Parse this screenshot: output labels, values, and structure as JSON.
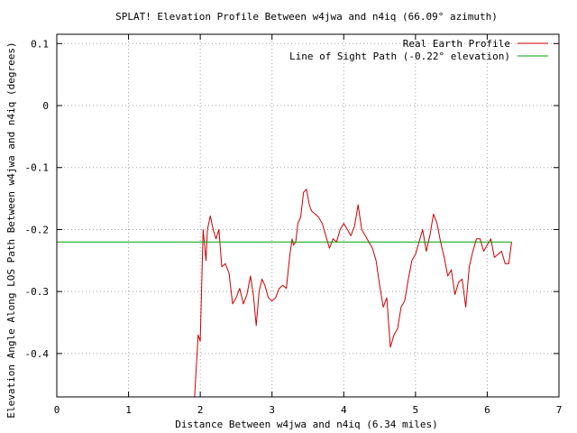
{
  "chart_data": {
    "type": "line",
    "title": "SPLAT! Elevation Profile Between w4jwa and n4iq (66.09° azimuth)",
    "xlabel": "Distance Between w4jwa and n4iq (6.34 miles)",
    "ylabel": "Elevation Angle Along LOS Path Between w4jwa and n4iq (degrees)",
    "xlim": [
      0,
      7
    ],
    "ylim": [
      -0.47,
      0.115
    ],
    "x_ticks": [
      0,
      1,
      2,
      3,
      4,
      5,
      6,
      7
    ],
    "x_tick_labels": [
      "0",
      "1",
      "2",
      "3",
      "4",
      "5",
      "6",
      "7"
    ],
    "y_ticks": [
      0.1,
      0,
      -0.1,
      -0.2,
      -0.3,
      -0.4
    ],
    "y_tick_labels": [
      "0.1",
      "0",
      "-0.1",
      "-0.2",
      "-0.3",
      "-0.4"
    ],
    "grid": true,
    "legend_position": "top-right",
    "series": [
      {
        "name": "Real Earth Profile",
        "color": "#cc0000",
        "x": [
          1.92,
          1.97,
          2.0,
          2.04,
          2.08,
          2.1,
          2.14,
          2.18,
          2.22,
          2.26,
          2.3,
          2.35,
          2.4,
          2.45,
          2.5,
          2.55,
          2.6,
          2.65,
          2.7,
          2.74,
          2.78,
          2.82,
          2.86,
          2.9,
          2.95,
          3.0,
          3.05,
          3.1,
          3.15,
          3.2,
          3.25,
          3.28,
          3.3,
          3.33,
          3.36,
          3.4,
          3.44,
          3.48,
          3.52,
          3.55,
          3.6,
          3.65,
          3.7,
          3.75,
          3.8,
          3.85,
          3.9,
          3.95,
          4.0,
          4.05,
          4.1,
          4.15,
          4.2,
          4.25,
          4.3,
          4.35,
          4.4,
          4.45,
          4.5,
          4.55,
          4.6,
          4.65,
          4.7,
          4.75,
          4.8,
          4.85,
          4.9,
          4.95,
          5.0,
          5.05,
          5.1,
          5.15,
          5.2,
          5.25,
          5.3,
          5.35,
          5.4,
          5.45,
          5.5,
          5.55,
          5.6,
          5.65,
          5.7,
          5.75,
          5.8,
          5.85,
          5.9,
          5.95,
          6.0,
          6.05,
          6.1,
          6.15,
          6.2,
          6.25,
          6.3,
          6.34,
          6.34
        ],
        "y": [
          -0.47,
          -0.37,
          -0.38,
          -0.2,
          -0.25,
          -0.2,
          -0.178,
          -0.2,
          -0.215,
          -0.2,
          -0.26,
          -0.255,
          -0.27,
          -0.32,
          -0.31,
          -0.295,
          -0.32,
          -0.305,
          -0.275,
          -0.305,
          -0.355,
          -0.3,
          -0.28,
          -0.29,
          -0.31,
          -0.315,
          -0.31,
          -0.295,
          -0.29,
          -0.295,
          -0.24,
          -0.215,
          -0.225,
          -0.22,
          -0.19,
          -0.18,
          -0.14,
          -0.135,
          -0.16,
          -0.17,
          -0.175,
          -0.18,
          -0.19,
          -0.21,
          -0.23,
          -0.215,
          -0.22,
          -0.2,
          -0.19,
          -0.2,
          -0.21,
          -0.195,
          -0.16,
          -0.2,
          -0.21,
          -0.22,
          -0.23,
          -0.25,
          -0.29,
          -0.325,
          -0.31,
          -0.39,
          -0.37,
          -0.36,
          -0.325,
          -0.315,
          -0.28,
          -0.25,
          -0.24,
          -0.22,
          -0.2,
          -0.235,
          -0.21,
          -0.175,
          -0.19,
          -0.22,
          -0.245,
          -0.275,
          -0.265,
          -0.305,
          -0.285,
          -0.28,
          -0.325,
          -0.26,
          -0.235,
          -0.215,
          -0.215,
          -0.235,
          -0.225,
          -0.215,
          -0.245,
          -0.24,
          -0.235,
          -0.255,
          -0.255,
          -0.22,
          -0.22
        ]
      },
      {
        "name": "Line of Sight Path (-0.22° elevation)",
        "color": "#00a000",
        "x": [
          0,
          6.34
        ],
        "y": [
          -0.22,
          -0.22
        ]
      }
    ]
  }
}
